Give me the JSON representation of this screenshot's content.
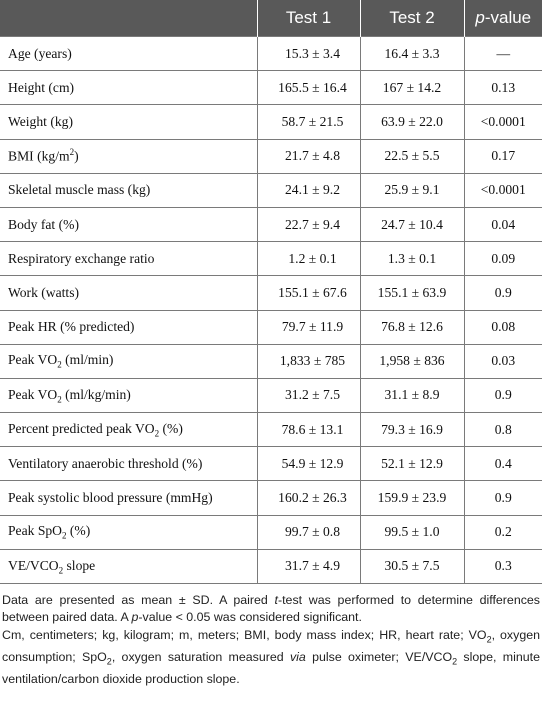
{
  "header": {
    "col0": "",
    "test1": "Test 1",
    "test2": "Test 2",
    "p_italic": "p",
    "p_rest": "-value"
  },
  "rows": [
    {
      "label": "Age (years)",
      "t1": "15.3 ± 3.4",
      "t2": "16.4 ± 3.3",
      "p": "—"
    },
    {
      "label": "Height (cm)",
      "t1": "165.5 ± 16.4",
      "t2": "167 ± 14.2",
      "p": "0.13"
    },
    {
      "label": "Weight (kg)",
      "t1": "58.7 ± 21.5",
      "t2": "63.9 ± 22.0",
      "p": "<0.0001"
    },
    {
      "label_pre": "BMI (kg/m",
      "label_sup": "2",
      "label_post": ")",
      "t1": "21.7 ± 4.8",
      "t2": "22.5 ± 5.5",
      "p": "0.17"
    },
    {
      "label": "Skeletal muscle mass (kg)",
      "t1": "24.1 ± 9.2",
      "t2": "25.9 ± 9.1",
      "p": "<0.0001"
    },
    {
      "label": "Body fat (%)",
      "t1": "22.7 ± 9.4",
      "t2": "24.7 ± 10.4",
      "p": "0.04"
    },
    {
      "label": "Respiratory exchange ratio",
      "t1": "1.2 ± 0.1",
      "t2": "1.3 ± 0.1",
      "p": "0.09"
    },
    {
      "label": "Work (watts)",
      "t1": "155.1 ± 67.6",
      "t2": "155.1 ± 63.9",
      "p": "0.9"
    },
    {
      "label": "Peak HR (% predicted)",
      "t1": "79.7 ± 11.9",
      "t2": "76.8 ± 12.6",
      "p": "0.08"
    },
    {
      "label_pre": "Peak VO",
      "label_sub": "2",
      "label_post": " (ml/min)",
      "t1": "1,833 ± 785",
      "t2": "1,958 ± 836",
      "p": "0.03"
    },
    {
      "label_pre": "Peak VO",
      "label_sub": "2",
      "label_post": " (ml/kg/min)",
      "t1": "31.2 ± 7.5",
      "t2": "31.1 ± 8.9",
      "p": "0.9"
    },
    {
      "label_pre": "Percent predicted peak VO",
      "label_sub": "2",
      "label_post": " (%)",
      "t1": "78.6 ± 13.1",
      "t2": "79.3 ± 16.9",
      "p": "0.8"
    },
    {
      "label": "Ventilatory anaerobic threshold (%)",
      "t1": "54.9 ± 12.9",
      "t2": "52.1 ± 12.9",
      "p": "0.4"
    },
    {
      "label": "Peak systolic blood pressure (mmHg)",
      "t1": "160.2 ± 26.3",
      "t2": "159.9 ± 23.9",
      "p": "0.9"
    },
    {
      "label_pre": "Peak SpO",
      "label_sub": "2",
      "label_post": " (%)",
      "t1": "99.7 ± 0.8",
      "t2": "99.5 ± 1.0",
      "p": "0.2"
    },
    {
      "label_pre": "VE/VCO",
      "label_sub": "2",
      "label_post": " slope",
      "t1": "31.7 ± 4.9",
      "t2": "30.5 ± 7.5",
      "p": "0.3"
    }
  ],
  "footnote": {
    "line1": {
      "a": "Data are presented as mean ± SD. A paired ",
      "t": "t",
      "b": "-test was performed to determine differences between paired data. A ",
      "p": "p",
      "c": "-value < 0.05 was considered significant."
    },
    "line2": {
      "a": "Cm, centimeters; kg, kilogram; m, meters; BMI, body mass index; HR, heart rate; VO",
      "sub1": "2",
      "b": ", oxygen consumption; SpO",
      "sub2": "2",
      "c": ", oxygen saturation measured ",
      "via": "via",
      "d": " pulse oximeter; VE/VCO",
      "sub3": "2",
      "e": " slope, minute ventilation/carbon dioxide production slope."
    }
  }
}
